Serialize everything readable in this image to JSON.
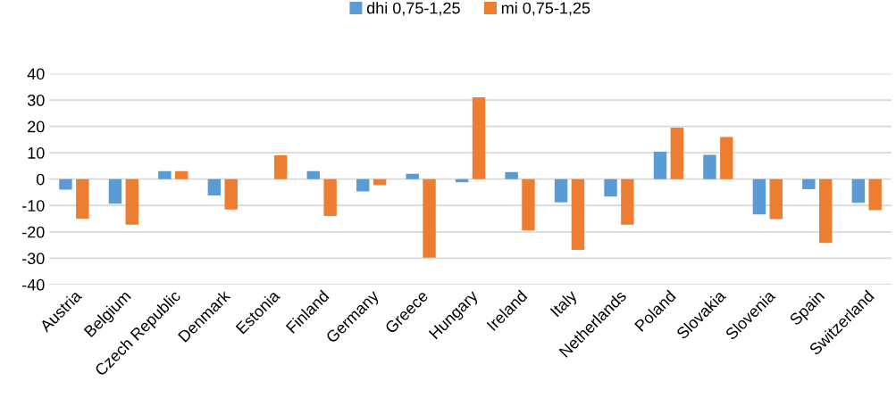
{
  "chart_data": {
    "type": "bar",
    "categories": [
      "Austria",
      "Belgium",
      "Czech Republic",
      "Denmark",
      "Estonia",
      "Finland",
      "Germany",
      "Greece",
      "Hungary",
      "Ireland",
      "Italy",
      "Netherlands",
      "Poland",
      "Slovakia",
      "Slovenia",
      "Spain",
      "Switzerland"
    ],
    "series": [
      {
        "name": "dhi 0,75-1,25",
        "color": "#5b9bd5",
        "values": [
          -4,
          -9.3,
          3,
          -6.2,
          0,
          3,
          -4.7,
          2,
          -1.2,
          2.7,
          -8.8,
          -6.6,
          10.4,
          9.2,
          -13.4,
          -3.8,
          -9
        ]
      },
      {
        "name": "mi 0,75-1,25",
        "color": "#ed7d31",
        "values": [
          -15,
          -17.3,
          3,
          -11.5,
          9,
          -14,
          -2.3,
          -29.8,
          31,
          -19.5,
          -26.8,
          -17.3,
          19.5,
          16,
          -15.2,
          -24.2,
          -11.8
        ]
      }
    ],
    "ylim": [
      -40,
      40
    ],
    "yticks": [
      -40,
      -30,
      -20,
      -10,
      0,
      10,
      20,
      30,
      40
    ],
    "grid": "y",
    "legend": "top"
  }
}
